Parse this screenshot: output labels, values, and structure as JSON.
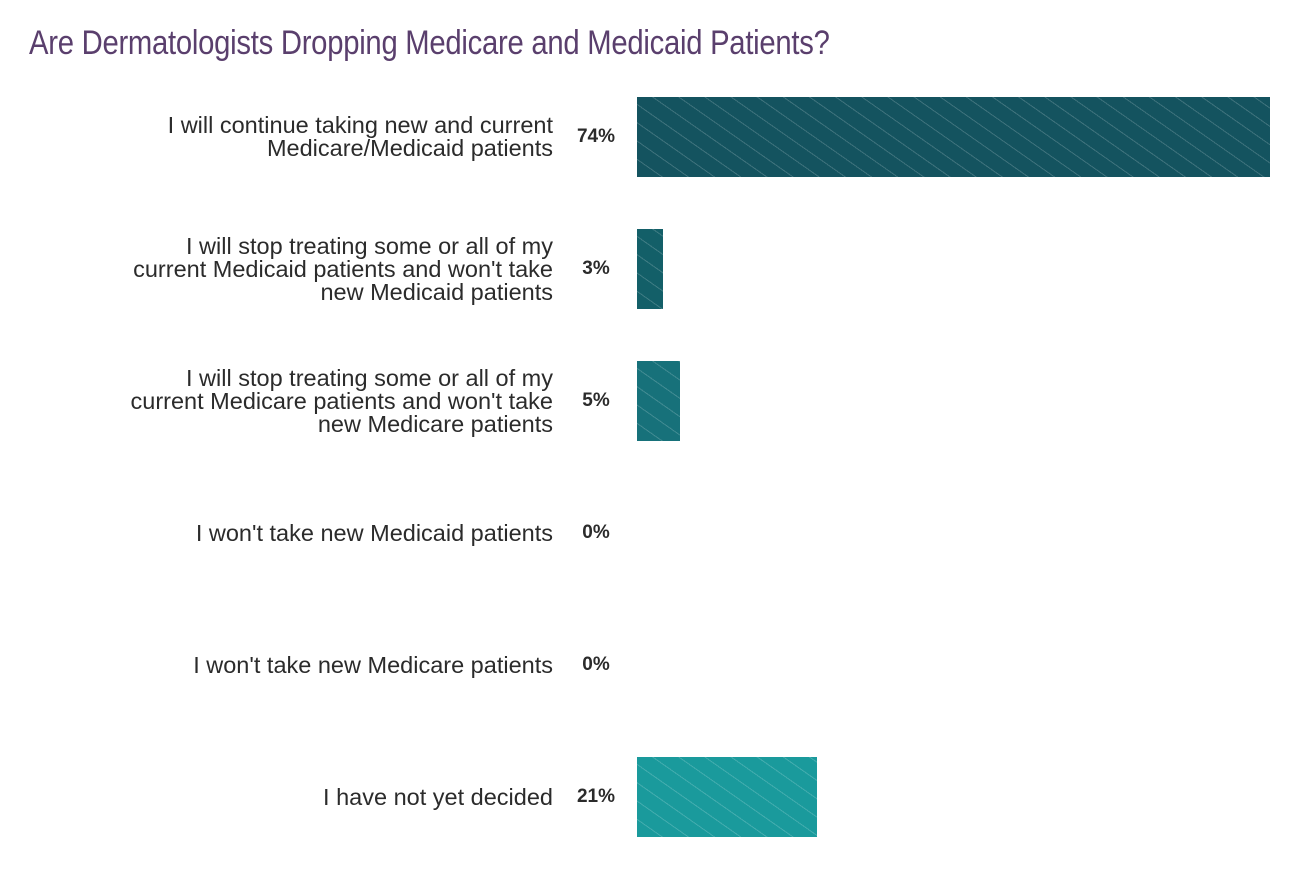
{
  "chart_data": {
    "type": "bar",
    "orientation": "horizontal",
    "title": "Are Dermatologists Dropping Medicare and Medicaid Patients?",
    "categories": [
      "I will continue taking new and current Medicare/Medicaid patients",
      "I will stop treating some or all of my current Medicaid patients and won't take new Medicaid patients",
      "I will stop treating some or all of my current Medicare patients and won't take new Medicare patients",
      "I won't take new Medicaid patients",
      "I won't take new Medicare patients",
      "I have not yet decided"
    ],
    "category_lines": [
      [
        "I will continue taking new and current",
        "Medicare/Medicaid patients"
      ],
      [
        "I will stop treating some or all of my",
        "current Medicaid patients and won't take",
        "new Medicaid patients"
      ],
      [
        "I will stop treating some or all of my",
        "current Medicare patients and won't take",
        "new Medicare patients"
      ],
      [
        "I won't take new Medicaid patients"
      ],
      [
        "I won't take new Medicare patients"
      ],
      [
        "I have not yet decided"
      ]
    ],
    "values": [
      74,
      3,
      5,
      0,
      0,
      21
    ],
    "data_labels": [
      "74%",
      "3%",
      "5%",
      "0%",
      "0%",
      "21%"
    ],
    "xlim": [
      0,
      74
    ],
    "grid": false,
    "colors": [
      "#14535f",
      "#135f68",
      "#17717a",
      "#17717a",
      "#178587",
      "#1a9a9c"
    ]
  }
}
